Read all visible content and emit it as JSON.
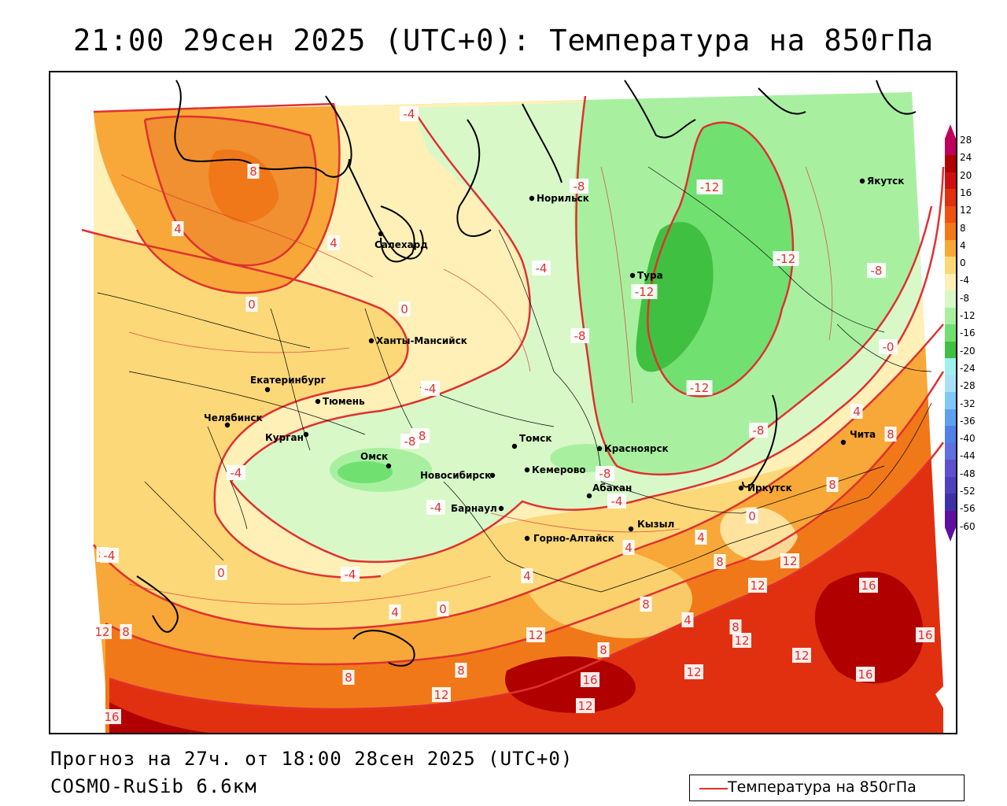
{
  "title": "21:00 29сен 2025 (UTC+0): Температура на 850гПа",
  "footer": {
    "forecast": "Прогноз на 27ч. от 18:00 28сен 2025 (UTC+0)",
    "model": "COSMO-RuSib 6.6км"
  },
  "legend": {
    "label": "Температура на 850гПа",
    "line_color": "#e03030"
  },
  "colorbar": {
    "ticks": [
      "28",
      "24",
      "20",
      "16",
      "12",
      "8",
      "4",
      "0",
      "-4",
      "-8",
      "-12",
      "-16",
      "-20",
      "-24",
      "-28",
      "-32",
      "-36",
      "-40",
      "-44",
      "-48",
      "-52",
      "-56",
      "-60"
    ],
    "colors": [
      "#c0005a",
      "#b00000",
      "#d01010",
      "#e03010",
      "#f05010",
      "#f07818",
      "#f8a838",
      "#fcd878",
      "#fff0b8",
      "#d8f8c8",
      "#a8f0a0",
      "#70e070",
      "#40c040",
      "#a0f0f0",
      "#a8e0f8",
      "#80c8f8",
      "#60a0f0",
      "#5080e8",
      "#6070e0",
      "#6050d0",
      "#5040c0",
      "#4030a8",
      "#6010a0"
    ]
  },
  "cities": [
    {
      "name": "Норильск"
    },
    {
      "name": "Якутск"
    },
    {
      "name": "Салехард"
    },
    {
      "name": "Тура"
    },
    {
      "name": "Ханты-Мансийск"
    },
    {
      "name": "Екатеринбург"
    },
    {
      "name": "Тюмень"
    },
    {
      "name": "Челябинск"
    },
    {
      "name": "Курган"
    },
    {
      "name": "Омск"
    },
    {
      "name": "Новосибирск"
    },
    {
      "name": "Томск"
    },
    {
      "name": "Кемерово"
    },
    {
      "name": "Красноярск"
    },
    {
      "name": "Абакан"
    },
    {
      "name": "Иркутск"
    },
    {
      "name": "Чита"
    },
    {
      "name": "Барнаул"
    },
    {
      "name": "Горно-Алтайск"
    },
    {
      "name": "Кызыл"
    }
  ],
  "isotherm_labels": [
    "-4",
    "8",
    "4",
    "4",
    "0",
    "0",
    "-8",
    "-12",
    "-4",
    "-12",
    "-12",
    "-8",
    "-8",
    "-4",
    "-8",
    "-0",
    "-8",
    "-12",
    "4",
    "8",
    "-8",
    "-4",
    "-8",
    "-4",
    "-4",
    "8",
    "12",
    "-4",
    "0",
    "4",
    "0",
    "4",
    "4",
    "8",
    "12",
    "16",
    "-4",
    "0",
    "4",
    "8",
    "8",
    "12",
    "8",
    "4",
    "8",
    "12",
    "16",
    "12",
    "8",
    "8",
    "12",
    "16",
    "12",
    "16",
    "8",
    "12",
    "12",
    "16"
  ]
}
